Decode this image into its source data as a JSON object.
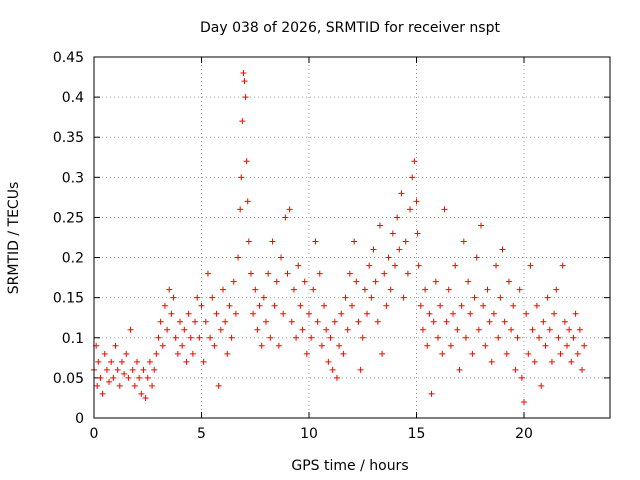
{
  "chart_data": {
    "type": "scatter",
    "title": "Day 038 of 2026, SRMTID for receiver nspt",
    "xlabel": "GPS time / hours",
    "ylabel": "SRMTID / TECUs",
    "xlim": [
      0,
      24
    ],
    "ylim": [
      0,
      0.45
    ],
    "xticks": [
      0,
      5,
      10,
      15,
      20
    ],
    "xtick_labels": [
      "0",
      "5",
      "10",
      "15",
      "20"
    ],
    "yticks": [
      0,
      0.05,
      0.1,
      0.15,
      0.2,
      0.25,
      0.3,
      0.35,
      0.4,
      0.45
    ],
    "ytick_labels": [
      "0",
      "0.05",
      "0.1",
      "0.15",
      "0.2",
      "0.25",
      "0.3",
      "0.35",
      "0.4",
      "0.45"
    ],
    "grid": true,
    "marker": "+",
    "marker_color": "#ff0000",
    "series": [
      {
        "name": "SRMTID",
        "points": [
          [
            0.0,
            0.06
          ],
          [
            0.1,
            0.09
          ],
          [
            0.15,
            0.04
          ],
          [
            0.2,
            0.07
          ],
          [
            0.3,
            0.05
          ],
          [
            0.4,
            0.03
          ],
          [
            0.5,
            0.08
          ],
          [
            0.6,
            0.06
          ],
          [
            0.7,
            0.045
          ],
          [
            0.8,
            0.07
          ],
          [
            0.9,
            0.05
          ],
          [
            1.0,
            0.09
          ],
          [
            1.1,
            0.06
          ],
          [
            1.2,
            0.04
          ],
          [
            1.3,
            0.07
          ],
          [
            1.4,
            0.055
          ],
          [
            1.5,
            0.08
          ],
          [
            1.6,
            0.05
          ],
          [
            1.7,
            0.11
          ],
          [
            1.8,
            0.06
          ],
          [
            1.9,
            0.04
          ],
          [
            2.0,
            0.07
          ],
          [
            2.1,
            0.05
          ],
          [
            2.2,
            0.03
          ],
          [
            2.3,
            0.06
          ],
          [
            2.4,
            0.025
          ],
          [
            2.5,
            0.05
          ],
          [
            2.6,
            0.07
          ],
          [
            2.7,
            0.04
          ],
          [
            2.8,
            0.06
          ],
          [
            2.9,
            0.08
          ],
          [
            3.0,
            0.1
          ],
          [
            3.1,
            0.12
          ],
          [
            3.2,
            0.09
          ],
          [
            3.3,
            0.14
          ],
          [
            3.4,
            0.11
          ],
          [
            3.5,
            0.16
          ],
          [
            3.6,
            0.13
          ],
          [
            3.7,
            0.15
          ],
          [
            3.8,
            0.1
          ],
          [
            3.9,
            0.08
          ],
          [
            4.0,
            0.12
          ],
          [
            4.1,
            0.09
          ],
          [
            4.2,
            0.11
          ],
          [
            4.3,
            0.07
          ],
          [
            4.4,
            0.13
          ],
          [
            4.5,
            0.1
          ],
          [
            4.6,
            0.08
          ],
          [
            4.7,
            0.12
          ],
          [
            4.8,
            0.15
          ],
          [
            4.9,
            0.1
          ],
          [
            5.0,
            0.14
          ],
          [
            5.1,
            0.07
          ],
          [
            5.2,
            0.12
          ],
          [
            5.3,
            0.18
          ],
          [
            5.4,
            0.1
          ],
          [
            5.5,
            0.15
          ],
          [
            5.6,
            0.09
          ],
          [
            5.7,
            0.13
          ],
          [
            5.8,
            0.04
          ],
          [
            5.9,
            0.11
          ],
          [
            6.0,
            0.16
          ],
          [
            6.1,
            0.12
          ],
          [
            6.2,
            0.08
          ],
          [
            6.3,
            0.14
          ],
          [
            6.4,
            0.1
          ],
          [
            6.5,
            0.17
          ],
          [
            6.6,
            0.13
          ],
          [
            6.7,
            0.2
          ],
          [
            6.8,
            0.26
          ],
          [
            6.85,
            0.3
          ],
          [
            6.9,
            0.37
          ],
          [
            6.95,
            0.43
          ],
          [
            7.0,
            0.42
          ],
          [
            7.05,
            0.4
          ],
          [
            7.1,
            0.32
          ],
          [
            7.15,
            0.27
          ],
          [
            7.2,
            0.22
          ],
          [
            7.3,
            0.18
          ],
          [
            7.4,
            0.13
          ],
          [
            7.5,
            0.16
          ],
          [
            7.6,
            0.11
          ],
          [
            7.7,
            0.14
          ],
          [
            7.8,
            0.09
          ],
          [
            7.9,
            0.15
          ],
          [
            8.0,
            0.12
          ],
          [
            8.1,
            0.18
          ],
          [
            8.2,
            0.1
          ],
          [
            8.3,
            0.22
          ],
          [
            8.4,
            0.14
          ],
          [
            8.5,
            0.17
          ],
          [
            8.6,
            0.09
          ],
          [
            8.7,
            0.2
          ],
          [
            8.8,
            0.13
          ],
          [
            8.9,
            0.25
          ],
          [
            9.0,
            0.18
          ],
          [
            9.1,
            0.26
          ],
          [
            9.2,
            0.12
          ],
          [
            9.3,
            0.16
          ],
          [
            9.4,
            0.1
          ],
          [
            9.5,
            0.19
          ],
          [
            9.6,
            0.14
          ],
          [
            9.7,
            0.11
          ],
          [
            9.8,
            0.17
          ],
          [
            9.9,
            0.08
          ],
          [
            10.0,
            0.13
          ],
          [
            10.1,
            0.1
          ],
          [
            10.2,
            0.16
          ],
          [
            10.3,
            0.22
          ],
          [
            10.4,
            0.12
          ],
          [
            10.5,
            0.18
          ],
          [
            10.6,
            0.09
          ],
          [
            10.7,
            0.14
          ],
          [
            10.8,
            0.11
          ],
          [
            10.9,
            0.07
          ],
          [
            11.0,
            0.1
          ],
          [
            11.1,
            0.06
          ],
          [
            11.2,
            0.12
          ],
          [
            11.3,
            0.05
          ],
          [
            11.4,
            0.09
          ],
          [
            11.5,
            0.13
          ],
          [
            11.6,
            0.08
          ],
          [
            11.7,
            0.15
          ],
          [
            11.8,
            0.11
          ],
          [
            11.9,
            0.18
          ],
          [
            12.0,
            0.14
          ],
          [
            12.1,
            0.22
          ],
          [
            12.2,
            0.17
          ],
          [
            12.3,
            0.12
          ],
          [
            12.4,
            0.06
          ],
          [
            12.5,
            0.1
          ],
          [
            12.6,
            0.16
          ],
          [
            12.7,
            0.13
          ],
          [
            12.8,
            0.19
          ],
          [
            12.9,
            0.15
          ],
          [
            13.0,
            0.21
          ],
          [
            13.1,
            0.17
          ],
          [
            13.2,
            0.12
          ],
          [
            13.3,
            0.24
          ],
          [
            13.4,
            0.08
          ],
          [
            13.5,
            0.18
          ],
          [
            13.6,
            0.14
          ],
          [
            13.7,
            0.2
          ],
          [
            13.8,
            0.16
          ],
          [
            13.9,
            0.23
          ],
          [
            14.0,
            0.19
          ],
          [
            14.1,
            0.25
          ],
          [
            14.2,
            0.21
          ],
          [
            14.3,
            0.28
          ],
          [
            14.4,
            0.15
          ],
          [
            14.5,
            0.22
          ],
          [
            14.6,
            0.18
          ],
          [
            14.7,
            0.26
          ],
          [
            14.8,
            0.3
          ],
          [
            14.9,
            0.32
          ],
          [
            15.0,
            0.27
          ],
          [
            15.05,
            0.23
          ],
          [
            15.1,
            0.19
          ],
          [
            15.2,
            0.14
          ],
          [
            15.3,
            0.11
          ],
          [
            15.4,
            0.16
          ],
          [
            15.5,
            0.09
          ],
          [
            15.6,
            0.13
          ],
          [
            15.7,
            0.03
          ],
          [
            15.8,
            0.12
          ],
          [
            15.9,
            0.17
          ],
          [
            16.0,
            0.1
          ],
          [
            16.1,
            0.14
          ],
          [
            16.2,
            0.08
          ],
          [
            16.3,
            0.26
          ],
          [
            16.4,
            0.12
          ],
          [
            16.5,
            0.16
          ],
          [
            16.6,
            0.09
          ],
          [
            16.7,
            0.13
          ],
          [
            16.8,
            0.19
          ],
          [
            16.9,
            0.11
          ],
          [
            17.0,
            0.06
          ],
          [
            17.1,
            0.14
          ],
          [
            17.2,
            0.22
          ],
          [
            17.3,
            0.1
          ],
          [
            17.4,
            0.17
          ],
          [
            17.5,
            0.13
          ],
          [
            17.6,
            0.08
          ],
          [
            17.7,
            0.15
          ],
          [
            17.8,
            0.2
          ],
          [
            17.9,
            0.11
          ],
          [
            18.0,
            0.24
          ],
          [
            18.1,
            0.14
          ],
          [
            18.2,
            0.09
          ],
          [
            18.3,
            0.16
          ],
          [
            18.4,
            0.12
          ],
          [
            18.5,
            0.07
          ],
          [
            18.6,
            0.13
          ],
          [
            18.7,
            0.19
          ],
          [
            18.8,
            0.1
          ],
          [
            18.9,
            0.15
          ],
          [
            19.0,
            0.21
          ],
          [
            19.1,
            0.12
          ],
          [
            19.2,
            0.08
          ],
          [
            19.3,
            0.17
          ],
          [
            19.4,
            0.11
          ],
          [
            19.5,
            0.14
          ],
          [
            19.6,
            0.06
          ],
          [
            19.7,
            0.1
          ],
          [
            19.8,
            0.16
          ],
          [
            19.9,
            0.05
          ],
          [
            20.0,
            0.02
          ],
          [
            20.1,
            0.13
          ],
          [
            20.2,
            0.08
          ],
          [
            20.3,
            0.19
          ],
          [
            20.4,
            0.11
          ],
          [
            20.5,
            0.07
          ],
          [
            20.6,
            0.14
          ],
          [
            20.7,
            0.1
          ],
          [
            20.8,
            0.04
          ],
          [
            20.9,
            0.12
          ],
          [
            21.0,
            0.09
          ],
          [
            21.1,
            0.15
          ],
          [
            21.2,
            0.11
          ],
          [
            21.3,
            0.07
          ],
          [
            21.4,
            0.13
          ],
          [
            21.5,
            0.16
          ],
          [
            21.6,
            0.1
          ],
          [
            21.7,
            0.08
          ],
          [
            21.8,
            0.19
          ],
          [
            21.9,
            0.12
          ],
          [
            22.0,
            0.09
          ],
          [
            22.1,
            0.11
          ],
          [
            22.2,
            0.07
          ],
          [
            22.3,
            0.1
          ],
          [
            22.4,
            0.13
          ],
          [
            22.5,
            0.08
          ],
          [
            22.6,
            0.11
          ],
          [
            22.7,
            0.06
          ],
          [
            22.8,
            0.09
          ]
        ]
      }
    ]
  }
}
